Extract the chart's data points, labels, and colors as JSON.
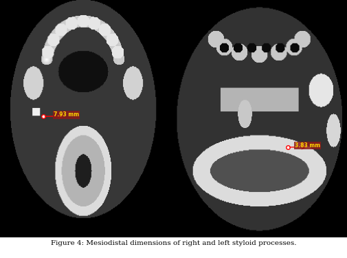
{
  "title_bold": "Figure 4:",
  "caption_normal": " Mesiodistal dimensions of right and left styloid processes.",
  "fig_width": 5.06,
  "fig_height": 3.75,
  "dpi": 100,
  "left_measurement": "7.93 mm",
  "right_measurement": "3.83 mm",
  "background_color": "#ffffff",
  "caption_fontsize": 7.5,
  "meas_bg_color": "#8B1A1A",
  "meas_text_color": "#FFD700"
}
